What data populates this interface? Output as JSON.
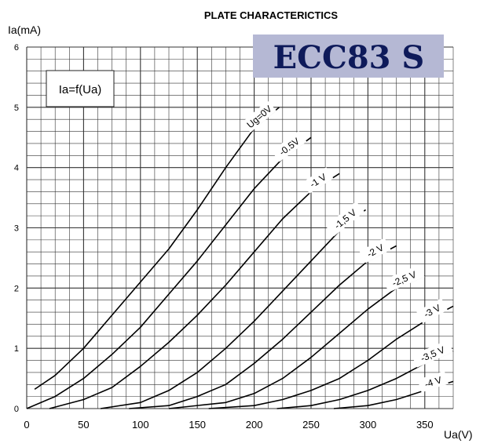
{
  "chart_data": {
    "type": "line",
    "title": "PLATE CHARACTERICTICS",
    "subtitle": "ECC83 S",
    "formula": "Ia=f(Ua)",
    "xlabel": "Ua(V)",
    "ylabel": "Ia(mA)",
    "xlim": [
      0,
      375
    ],
    "ylim": [
      0,
      6
    ],
    "x_ticks": [
      0,
      50,
      100,
      150,
      200,
      250,
      300,
      350
    ],
    "y_ticks": [
      0,
      1,
      2,
      3,
      4,
      5,
      6
    ],
    "grid": true,
    "series": [
      {
        "name": "Ug=0V",
        "points": [
          [
            7,
            0.32
          ],
          [
            25,
            0.55
          ],
          [
            50,
            1.0
          ],
          [
            75,
            1.55
          ],
          [
            100,
            2.1
          ],
          [
            125,
            2.65
          ],
          [
            150,
            3.3
          ],
          [
            175,
            4.0
          ],
          [
            200,
            4.65
          ],
          [
            222,
            5.0
          ]
        ]
      },
      {
        "name": "-0.5V",
        "points": [
          [
            0,
            0.0
          ],
          [
            25,
            0.2
          ],
          [
            50,
            0.5
          ],
          [
            75,
            0.9
          ],
          [
            100,
            1.35
          ],
          [
            125,
            1.9
          ],
          [
            150,
            2.45
          ],
          [
            175,
            3.05
          ],
          [
            200,
            3.65
          ],
          [
            225,
            4.15
          ],
          [
            250,
            4.5
          ]
        ]
      },
      {
        "name": "-1 V",
        "points": [
          [
            20,
            0.0
          ],
          [
            50,
            0.15
          ],
          [
            75,
            0.35
          ],
          [
            100,
            0.7
          ],
          [
            125,
            1.1
          ],
          [
            150,
            1.55
          ],
          [
            175,
            2.05
          ],
          [
            200,
            2.6
          ],
          [
            225,
            3.15
          ],
          [
            250,
            3.6
          ],
          [
            275,
            3.9
          ]
        ]
      },
      {
        "name": "-1,5 V",
        "points": [
          [
            65,
            0.0
          ],
          [
            100,
            0.1
          ],
          [
            125,
            0.3
          ],
          [
            150,
            0.6
          ],
          [
            175,
            1.0
          ],
          [
            200,
            1.45
          ],
          [
            225,
            1.95
          ],
          [
            250,
            2.45
          ],
          [
            275,
            2.95
          ],
          [
            298,
            3.3
          ]
        ]
      },
      {
        "name": "-2 V",
        "points": [
          [
            90,
            0.0
          ],
          [
            125,
            0.05
          ],
          [
            150,
            0.2
          ],
          [
            175,
            0.4
          ],
          [
            200,
            0.75
          ],
          [
            225,
            1.15
          ],
          [
            250,
            1.6
          ],
          [
            275,
            2.05
          ],
          [
            300,
            2.45
          ],
          [
            325,
            2.7
          ]
        ]
      },
      {
        "name": "-2,5 V",
        "points": [
          [
            125,
            0.0
          ],
          [
            175,
            0.1
          ],
          [
            200,
            0.25
          ],
          [
            225,
            0.5
          ],
          [
            250,
            0.85
          ],
          [
            275,
            1.25
          ],
          [
            300,
            1.65
          ],
          [
            325,
            2.0
          ],
          [
            350,
            2.2
          ]
        ]
      },
      {
        "name": "-3 V",
        "points": [
          [
            160,
            0.0
          ],
          [
            200,
            0.05
          ],
          [
            225,
            0.15
          ],
          [
            250,
            0.3
          ],
          [
            275,
            0.5
          ],
          [
            300,
            0.8
          ],
          [
            325,
            1.15
          ],
          [
            350,
            1.45
          ],
          [
            375,
            1.7
          ]
        ]
      },
      {
        "name": "-3,5 V",
        "points": [
          [
            220,
            0.0
          ],
          [
            250,
            0.05
          ],
          [
            275,
            0.15
          ],
          [
            300,
            0.3
          ],
          [
            325,
            0.5
          ],
          [
            350,
            0.75
          ],
          [
            375,
            0.95
          ]
        ]
      },
      {
        "name": "-4 V",
        "points": [
          [
            270,
            0.0
          ],
          [
            300,
            0.05
          ],
          [
            325,
            0.15
          ],
          [
            350,
            0.3
          ],
          [
            375,
            0.45
          ]
        ]
      }
    ]
  }
}
